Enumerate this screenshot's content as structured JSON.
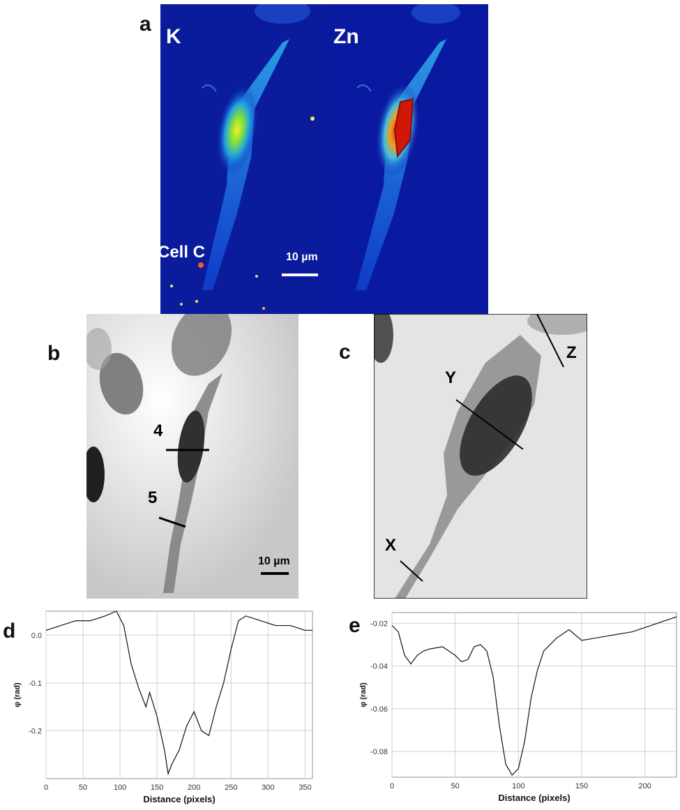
{
  "panel_letters": {
    "a": "a",
    "b": "b",
    "c": "c",
    "d": "d",
    "e": "e"
  },
  "panel_a": {
    "channel_left": "K",
    "channel_right": "Zn",
    "cell_label": "Cell C",
    "scale_bar": "10 µm"
  },
  "panel_b": {
    "line_4": "4",
    "line_5": "5",
    "scale_bar": "10 µm"
  },
  "panel_c": {
    "line_x": "X",
    "line_y": "Y",
    "line_z": "Z"
  },
  "chart_data": [
    {
      "type": "line",
      "panel": "d",
      "xlabel": "Distance (pixels)",
      "ylabel": "φ (rad)",
      "xlim": [
        0,
        360
      ],
      "ylim": [
        -0.3,
        0.05
      ],
      "xticks": [
        0,
        50,
        100,
        150,
        200,
        250,
        300,
        350
      ],
      "yticks": [
        0.0,
        -0.1,
        -0.2
      ],
      "ytick_labels": [
        "0.0",
        "-0.1",
        "-0.2"
      ],
      "grid": true,
      "x": [
        0,
        20,
        40,
        60,
        80,
        95,
        105,
        115,
        125,
        135,
        140,
        150,
        160,
        165,
        170,
        180,
        190,
        200,
        210,
        220,
        230,
        240,
        250,
        260,
        270,
        290,
        310,
        330,
        350,
        360
      ],
      "y": [
        0.01,
        0.02,
        0.03,
        0.03,
        0.04,
        0.05,
        0.02,
        -0.06,
        -0.11,
        -0.15,
        -0.12,
        -0.17,
        -0.24,
        -0.29,
        -0.27,
        -0.24,
        -0.19,
        -0.16,
        -0.2,
        -0.21,
        -0.15,
        -0.1,
        -0.03,
        0.03,
        0.04,
        0.03,
        0.02,
        0.02,
        0.01,
        0.01
      ]
    },
    {
      "type": "line",
      "panel": "e",
      "xlabel": "Distance (pixels)",
      "ylabel": "φ (rad)",
      "xlim": [
        0,
        225
      ],
      "ylim": [
        -0.092,
        -0.015
      ],
      "xticks": [
        0,
        50,
        100,
        150,
        200
      ],
      "yticks": [
        -0.02,
        -0.04,
        -0.06,
        -0.08
      ],
      "ytick_labels": [
        "-0.02",
        "-0.04",
        "-0.06",
        "-0.08"
      ],
      "grid": true,
      "x": [
        0,
        5,
        10,
        15,
        20,
        25,
        30,
        40,
        50,
        55,
        60,
        65,
        70,
        75,
        80,
        85,
        90,
        95,
        100,
        105,
        110,
        115,
        120,
        130,
        140,
        150,
        160,
        170,
        180,
        190,
        200,
        210,
        220,
        225
      ],
      "y": [
        -0.021,
        -0.024,
        -0.035,
        -0.039,
        -0.035,
        -0.033,
        -0.032,
        -0.031,
        -0.035,
        -0.038,
        -0.037,
        -0.031,
        -0.03,
        -0.033,
        -0.045,
        -0.068,
        -0.086,
        -0.091,
        -0.088,
        -0.075,
        -0.055,
        -0.042,
        -0.033,
        -0.027,
        -0.023,
        -0.028,
        -0.027,
        -0.026,
        -0.025,
        -0.024,
        -0.022,
        -0.02,
        -0.018,
        -0.017
      ]
    }
  ]
}
